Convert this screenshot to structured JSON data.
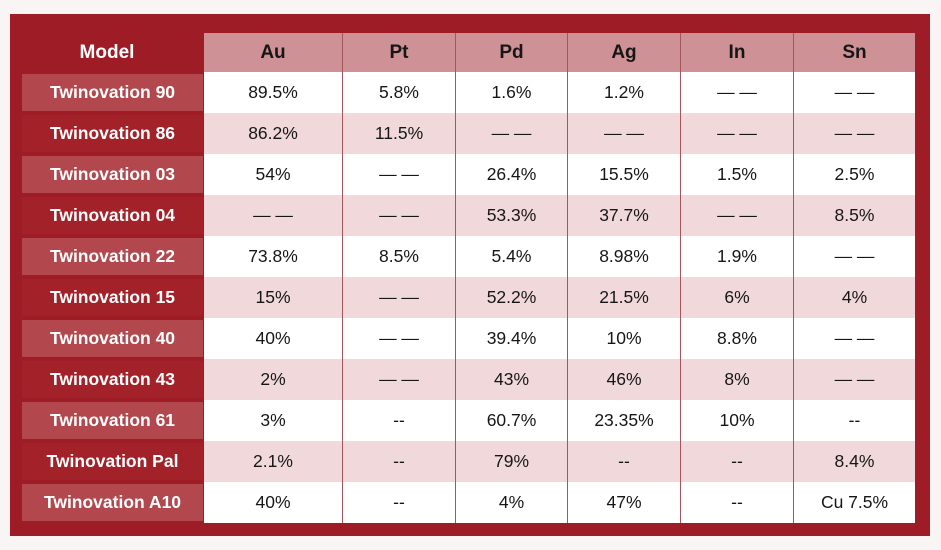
{
  "colors": {
    "page_bg": "#f8f5f4",
    "frame": "#9E1C26",
    "label_light": "#B2484D",
    "label_dark": "#A32129",
    "header_bg": "#CE9195",
    "row_base": "#FFFFFF",
    "row_alt": "#F1D9DB",
    "separator": "#A5565C",
    "text_dark": "#161616",
    "text_light": "#FFFFFF"
  },
  "chart_data": {
    "type": "table",
    "columns": [
      "Model",
      "Au",
      "Pt",
      "Pd",
      "Ag",
      "In",
      "Sn"
    ],
    "rows": [
      {
        "model": "Twinovation 90",
        "values": [
          "89.5%",
          "5.8%",
          "1.6%",
          "1.2%",
          "— —",
          "— —"
        ]
      },
      {
        "model": "Twinovation 86",
        "values": [
          "86.2%",
          "11.5%",
          "— —",
          "— —",
          "— —",
          "— —"
        ]
      },
      {
        "model": "Twinovation 03",
        "values": [
          "54%",
          "— —",
          "26.4%",
          "15.5%",
          "1.5%",
          "2.5%"
        ]
      },
      {
        "model": "Twinovation 04",
        "values": [
          "— —",
          "— —",
          "53.3%",
          "37.7%",
          "— —",
          "8.5%"
        ]
      },
      {
        "model": "Twinovation 22",
        "values": [
          "73.8%",
          "8.5%",
          "5.4%",
          "8.98%",
          "1.9%",
          "— —"
        ]
      },
      {
        "model": "Twinovation 15",
        "values": [
          "15%",
          "— —",
          "52.2%",
          "21.5%",
          "6%",
          "4%"
        ]
      },
      {
        "model": "Twinovation 40",
        "values": [
          "40%",
          "— —",
          "39.4%",
          "10%",
          "8.8%",
          "— —"
        ]
      },
      {
        "model": "Twinovation 43",
        "values": [
          "2%",
          "— —",
          "43%",
          "46%",
          "8%",
          "— —"
        ]
      },
      {
        "model": "Twinovation 61",
        "values": [
          "3%",
          "--",
          "60.7%",
          "23.35%",
          "10%",
          "--"
        ]
      },
      {
        "model": "Twinovation Pal",
        "values": [
          "2.1%",
          "--",
          "79%",
          "--",
          "--",
          "8.4%"
        ]
      },
      {
        "model": "Twinovation A10",
        "values": [
          "40%",
          "--",
          "4%",
          "47%",
          "--",
          "Cu 7.5%"
        ]
      }
    ]
  }
}
